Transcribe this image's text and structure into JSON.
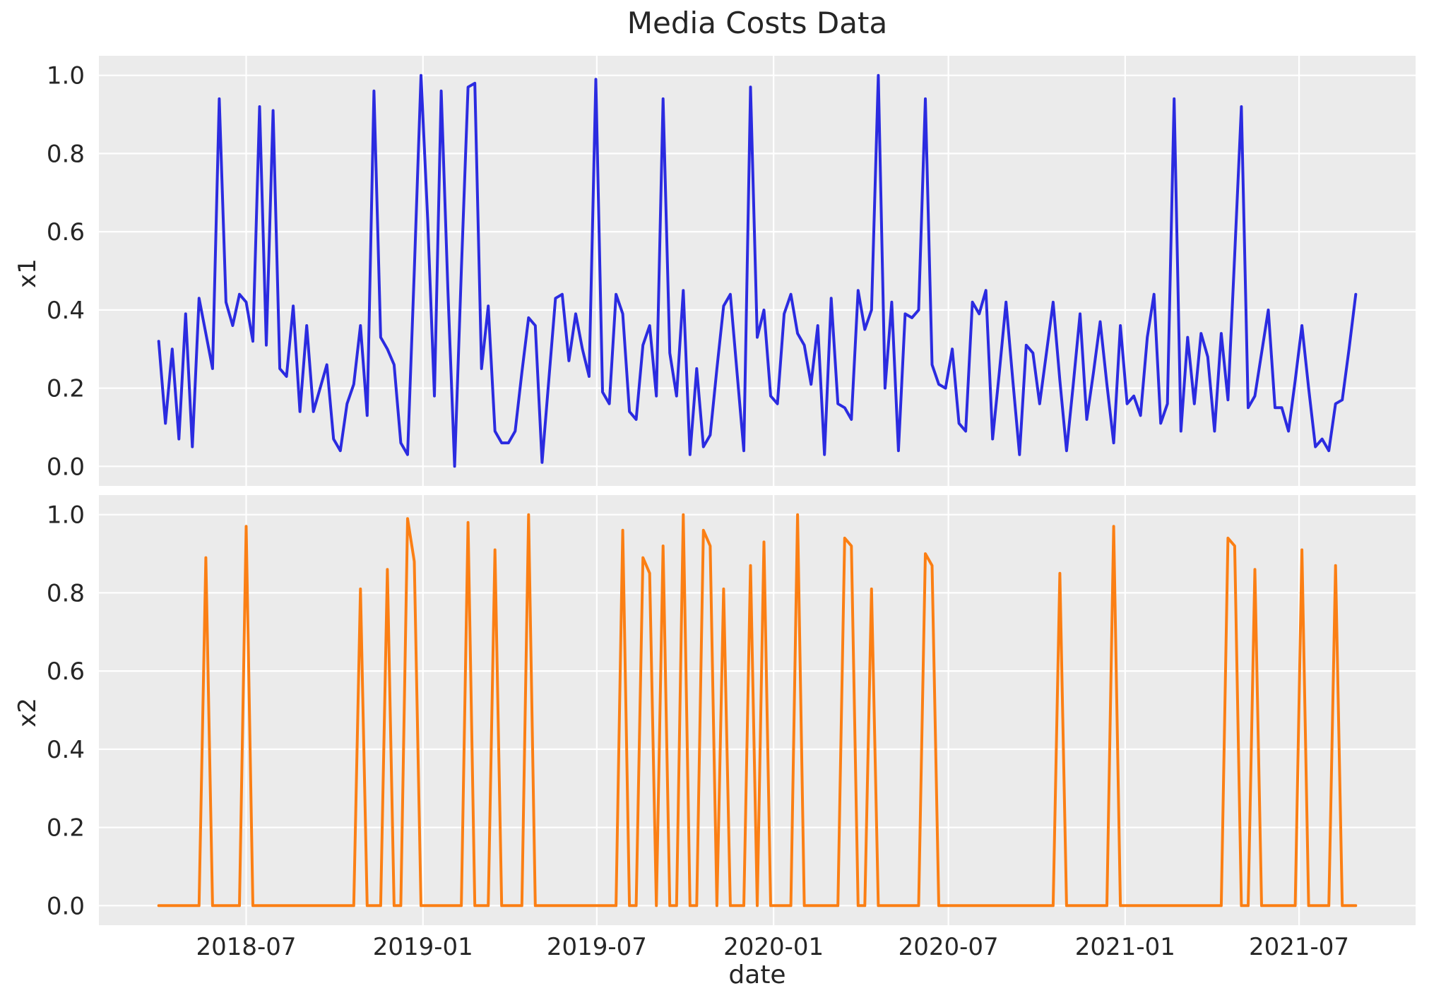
{
  "chart_data": {
    "type": "line",
    "title": "Media Costs Data",
    "xlabel": "date",
    "x_start_date": "2018-04-01",
    "x_step_days": 7,
    "n_points": 179,
    "grid": true,
    "legend_position": "none",
    "colors": {
      "axes_background": "#ebebeb",
      "gridline": "#ffffff",
      "text": "#262626",
      "x1_line": "#2b2be0",
      "x2_line": "#fb7f14"
    },
    "x_axis": {
      "tick_labels": [
        "2018-07",
        "2019-01",
        "2019-07",
        "2020-01",
        "2020-07",
        "2021-01",
        "2021-07"
      ],
      "tick_weeks": [
        13.0,
        39.29,
        65.14,
        91.43,
        117.43,
        143.71,
        169.57
      ],
      "xlim_weeks": [
        -8.9,
        186.9
      ]
    },
    "y_axis": {
      "tick_labels": [
        "0.0",
        "0.2",
        "0.4",
        "0.6",
        "0.8",
        "1.0"
      ],
      "tick_values": [
        0.0,
        0.2,
        0.4,
        0.6,
        0.8,
        1.0
      ],
      "ylim": [
        -0.05,
        1.05
      ]
    },
    "series": [
      {
        "name": "x1",
        "color": "#2b2be0",
        "values": [
          0.32,
          0.11,
          0.3,
          0.07,
          0.39,
          0.05,
          0.43,
          0.34,
          0.25,
          0.94,
          0.42,
          0.36,
          0.44,
          0.42,
          0.32,
          0.92,
          0.31,
          0.91,
          0.25,
          0.23,
          0.41,
          0.14,
          0.36,
          0.14,
          0.2,
          0.26,
          0.07,
          0.04,
          0.16,
          0.21,
          0.36,
          0.13,
          0.96,
          0.33,
          0.3,
          0.26,
          0.06,
          0.03,
          0.5,
          1.0,
          0.63,
          0.18,
          0.96,
          0.45,
          0.0,
          0.5,
          0.97,
          0.98,
          0.25,
          0.41,
          0.09,
          0.06,
          0.06,
          0.09,
          0.24,
          0.38,
          0.36,
          0.01,
          0.22,
          0.43,
          0.44,
          0.27,
          0.39,
          0.3,
          0.23,
          0.99,
          0.19,
          0.16,
          0.44,
          0.39,
          0.14,
          0.12,
          0.31,
          0.36,
          0.18,
          0.94,
          0.29,
          0.18,
          0.45,
          0.03,
          0.25,
          0.05,
          0.08,
          0.25,
          0.41,
          0.44,
          0.24,
          0.04,
          0.97,
          0.33,
          0.4,
          0.18,
          0.16,
          0.39,
          0.44,
          0.34,
          0.31,
          0.21,
          0.36,
          0.03,
          0.43,
          0.16,
          0.15,
          0.12,
          0.45,
          0.35,
          0.4,
          1.0,
          0.2,
          0.42,
          0.04,
          0.39,
          0.38,
          0.4,
          0.94,
          0.26,
          0.21,
          0.2,
          0.3,
          0.11,
          0.09,
          0.42,
          0.39,
          0.45,
          0.07,
          0.24,
          0.42,
          0.22,
          0.03,
          0.31,
          0.29,
          0.16,
          0.29,
          0.42,
          0.22,
          0.04,
          0.21,
          0.39,
          0.12,
          0.24,
          0.37,
          0.21,
          0.06,
          0.36,
          0.16,
          0.18,
          0.13,
          0.33,
          0.44,
          0.11,
          0.16,
          0.94,
          0.09,
          0.33,
          0.16,
          0.34,
          0.28,
          0.09,
          0.34,
          0.17,
          0.54,
          0.92,
          0.15,
          0.18,
          0.29,
          0.4,
          0.15,
          0.15,
          0.09,
          0.22,
          0.36,
          0.2,
          0.05,
          0.07,
          0.04,
          0.16,
          0.17,
          0.3,
          0.44
        ]
      },
      {
        "name": "x2",
        "color": "#fb7f14",
        "values": [
          0,
          0,
          0,
          0,
          0,
          0,
          0,
          0.89,
          0,
          0,
          0,
          0,
          0,
          0.97,
          0,
          0,
          0,
          0,
          0,
          0,
          0,
          0,
          0,
          0,
          0,
          0,
          0,
          0,
          0,
          0,
          0.81,
          0,
          0,
          0,
          0.86,
          0,
          0,
          0.99,
          0.88,
          0,
          0,
          0,
          0,
          0,
          0,
          0,
          0.98,
          0,
          0,
          0,
          0.91,
          0,
          0,
          0,
          0,
          1.0,
          0,
          0,
          0,
          0,
          0,
          0,
          0,
          0,
          0,
          0,
          0,
          0,
          0,
          0.96,
          0,
          0,
          0.89,
          0.85,
          0,
          0.92,
          0,
          0,
          1.0,
          0,
          0,
          0.96,
          0.92,
          0,
          0.81,
          0,
          0,
          0,
          0.87,
          0,
          0.93,
          0,
          0,
          0,
          0,
          1.0,
          0,
          0,
          0,
          0,
          0,
          0,
          0.94,
          0.92,
          0,
          0,
          0.81,
          0,
          0,
          0,
          0,
          0,
          0,
          0,
          0.9,
          0.87,
          0,
          0,
          0,
          0,
          0,
          0,
          0,
          0,
          0,
          0,
          0,
          0,
          0,
          0,
          0,
          0,
          0,
          0,
          0.85,
          0,
          0,
          0,
          0,
          0,
          0,
          0,
          0.97,
          0,
          0,
          0,
          0,
          0,
          0,
          0,
          0,
          0,
          0,
          0,
          0,
          0,
          0,
          0,
          0,
          0.94,
          0.92,
          0,
          0,
          0.86,
          0,
          0,
          0,
          0,
          0,
          0,
          0.91,
          0,
          0,
          0,
          0,
          0.87,
          0,
          0,
          0
        ]
      }
    ],
    "subplots": [
      {
        "ylabel": "x1",
        "series": "x1"
      },
      {
        "ylabel": "x2",
        "series": "x2"
      }
    ]
  }
}
